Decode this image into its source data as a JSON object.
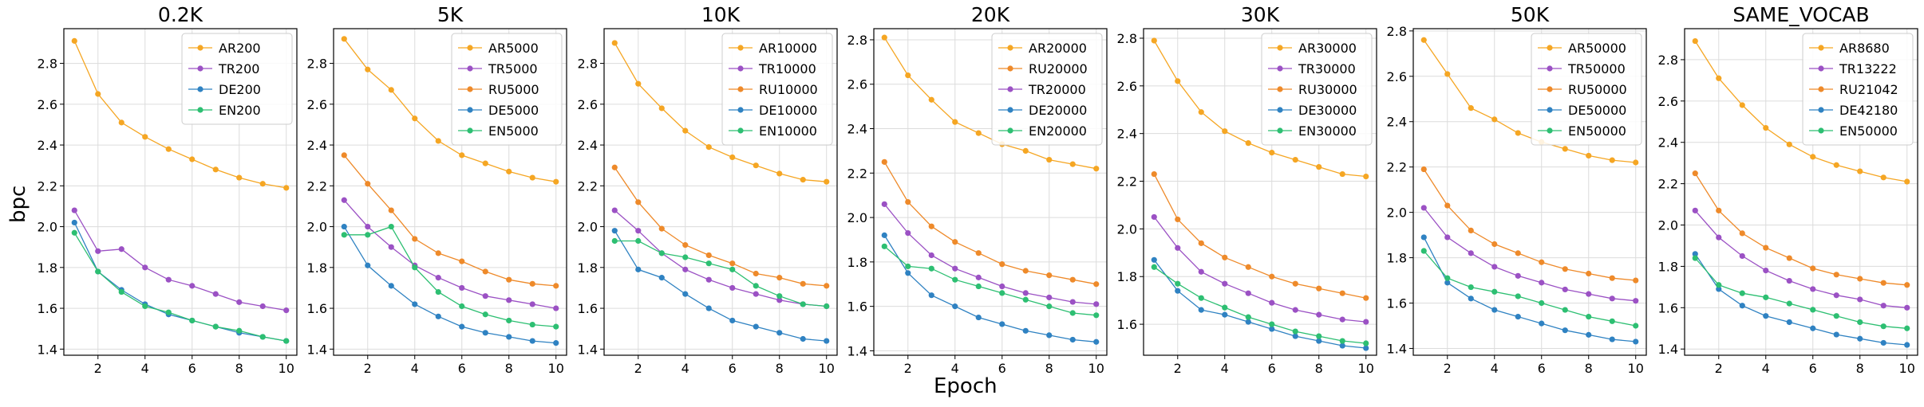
{
  "figure": {
    "ylabel": "bpc",
    "xlabel": "Epoch"
  },
  "colors": {
    "AR": "#f5a623",
    "TR": "#9b51c4",
    "RU": "#ee8a2a",
    "DE": "#2f82c2",
    "EN": "#2dbf72"
  },
  "chart_data": [
    {
      "type": "line",
      "title": "0.2K",
      "x": [
        1,
        2,
        3,
        4,
        5,
        6,
        7,
        8,
        9,
        10
      ],
      "xticks": [
        2,
        4,
        6,
        8,
        10
      ],
      "ylim": [
        1.37,
        2.97
      ],
      "yticks": [
        1.4,
        1.6,
        1.8,
        2.0,
        2.2,
        2.4,
        2.6,
        2.8
      ],
      "grid": true,
      "legend": "top-right",
      "series": [
        {
          "name": "AR200",
          "color": "#f5a623",
          "values": [
            2.91,
            2.65,
            2.51,
            2.44,
            2.38,
            2.33,
            2.28,
            2.24,
            2.21,
            2.19
          ]
        },
        {
          "name": "TR200",
          "color": "#9b51c4",
          "values": [
            2.08,
            1.88,
            1.89,
            1.8,
            1.74,
            1.71,
            1.67,
            1.63,
            1.61,
            1.59
          ]
        },
        {
          "name": "DE200",
          "color": "#2f82c2",
          "values": [
            2.02,
            1.78,
            1.69,
            1.62,
            1.57,
            1.54,
            1.51,
            1.48,
            1.46,
            1.44
          ]
        },
        {
          "name": "EN200",
          "color": "#2dbf72",
          "values": [
            1.97,
            1.78,
            1.68,
            1.61,
            1.58,
            1.54,
            1.51,
            1.49,
            1.46,
            1.44
          ]
        }
      ]
    },
    {
      "type": "line",
      "title": "5K",
      "x": [
        1,
        2,
        3,
        4,
        5,
        6,
        7,
        8,
        9,
        10
      ],
      "xticks": [
        2,
        4,
        6,
        8,
        10
      ],
      "ylim": [
        1.37,
        2.97
      ],
      "yticks": [
        1.4,
        1.6,
        1.8,
        2.0,
        2.2,
        2.4,
        2.6,
        2.8
      ],
      "grid": true,
      "legend": "top-right",
      "series": [
        {
          "name": "AR5000",
          "color": "#f5a623",
          "values": [
            2.92,
            2.77,
            2.67,
            2.53,
            2.42,
            2.35,
            2.31,
            2.27,
            2.24,
            2.22
          ]
        },
        {
          "name": "TR5000",
          "color": "#9b51c4",
          "values": [
            2.13,
            2.0,
            1.9,
            1.81,
            1.75,
            1.7,
            1.66,
            1.64,
            1.62,
            1.6
          ]
        },
        {
          "name": "RU5000",
          "color": "#ee8a2a",
          "values": [
            2.35,
            2.21,
            2.08,
            1.94,
            1.87,
            1.83,
            1.78,
            1.74,
            1.72,
            1.71
          ]
        },
        {
          "name": "DE5000",
          "color": "#2f82c2",
          "values": [
            2.0,
            1.81,
            1.71,
            1.62,
            1.56,
            1.51,
            1.48,
            1.46,
            1.44,
            1.43
          ]
        },
        {
          "name": "EN5000",
          "color": "#2dbf72",
          "values": [
            1.96,
            1.96,
            2.0,
            1.8,
            1.68,
            1.61,
            1.57,
            1.54,
            1.52,
            1.51
          ]
        }
      ]
    },
    {
      "type": "line",
      "title": "10K",
      "x": [
        1,
        2,
        3,
        4,
        5,
        6,
        7,
        8,
        9,
        10
      ],
      "xticks": [
        2,
        4,
        6,
        8,
        10
      ],
      "ylim": [
        1.37,
        2.97
      ],
      "yticks": [
        1.4,
        1.6,
        1.8,
        2.0,
        2.2,
        2.4,
        2.6,
        2.8
      ],
      "grid": true,
      "legend": "top-right",
      "series": [
        {
          "name": "AR10000",
          "color": "#f5a623",
          "values": [
            2.9,
            2.7,
            2.58,
            2.47,
            2.39,
            2.34,
            2.3,
            2.26,
            2.23,
            2.22
          ]
        },
        {
          "name": "TR10000",
          "color": "#9b51c4",
          "values": [
            2.08,
            1.98,
            1.87,
            1.79,
            1.74,
            1.7,
            1.67,
            1.64,
            1.62,
            1.61
          ]
        },
        {
          "name": "RU10000",
          "color": "#ee8a2a",
          "values": [
            2.29,
            2.12,
            1.99,
            1.91,
            1.86,
            1.82,
            1.77,
            1.75,
            1.72,
            1.71
          ]
        },
        {
          "name": "DE10000",
          "color": "#2f82c2",
          "values": [
            1.98,
            1.79,
            1.75,
            1.67,
            1.6,
            1.54,
            1.51,
            1.48,
            1.45,
            1.44
          ]
        },
        {
          "name": "EN10000",
          "color": "#2dbf72",
          "values": [
            1.93,
            1.93,
            1.87,
            1.85,
            1.82,
            1.79,
            1.71,
            1.66,
            1.62,
            1.61
          ]
        }
      ]
    },
    {
      "type": "line",
      "title": "20K",
      "x": [
        1,
        2,
        3,
        4,
        5,
        6,
        7,
        8,
        9,
        10
      ],
      "xticks": [
        2,
        4,
        6,
        8,
        10
      ],
      "ylim": [
        1.38,
        2.85
      ],
      "yticks": [
        1.4,
        1.6,
        1.8,
        2.0,
        2.2,
        2.4,
        2.6,
        2.8
      ],
      "grid": true,
      "legend": "top-right",
      "series": [
        {
          "name": "AR20000",
          "color": "#f5a623",
          "values": [
            2.81,
            2.64,
            2.53,
            2.43,
            2.38,
            2.33,
            2.3,
            2.26,
            2.24,
            2.22
          ]
        },
        {
          "name": "RU20000",
          "color": "#ee8a2a",
          "values": [
            2.25,
            2.07,
            1.96,
            1.89,
            1.84,
            1.79,
            1.76,
            1.74,
            1.72,
            1.7
          ]
        },
        {
          "name": "TR20000",
          "color": "#9b51c4",
          "values": [
            2.06,
            1.93,
            1.83,
            1.77,
            1.73,
            1.69,
            1.66,
            1.64,
            1.62,
            1.61
          ]
        },
        {
          "name": "DE20000",
          "color": "#2f82c2",
          "values": [
            1.92,
            1.75,
            1.65,
            1.6,
            1.55,
            1.52,
            1.49,
            1.47,
            1.45,
            1.44
          ]
        },
        {
          "name": "EN20000",
          "color": "#2dbf72",
          "values": [
            1.87,
            1.78,
            1.77,
            1.72,
            1.69,
            1.66,
            1.63,
            1.6,
            1.57,
            1.56
          ]
        }
      ]
    },
    {
      "type": "line",
      "title": "30K",
      "x": [
        1,
        2,
        3,
        4,
        5,
        6,
        7,
        8,
        9,
        10
      ],
      "xticks": [
        2,
        4,
        6,
        8,
        10
      ],
      "ylim": [
        1.47,
        2.84
      ],
      "yticks": [
        1.6,
        1.8,
        2.0,
        2.2,
        2.4,
        2.6,
        2.8
      ],
      "grid": true,
      "legend": "top-right",
      "series": [
        {
          "name": "AR30000",
          "color": "#f5a623",
          "values": [
            2.79,
            2.62,
            2.49,
            2.41,
            2.36,
            2.32,
            2.29,
            2.26,
            2.23,
            2.22
          ]
        },
        {
          "name": "TR30000",
          "color": "#9b51c4",
          "values": [
            2.05,
            1.92,
            1.82,
            1.77,
            1.73,
            1.69,
            1.66,
            1.64,
            1.62,
            1.61
          ]
        },
        {
          "name": "RU30000",
          "color": "#ee8a2a",
          "values": [
            2.23,
            2.04,
            1.94,
            1.88,
            1.84,
            1.8,
            1.77,
            1.75,
            1.73,
            1.71
          ]
        },
        {
          "name": "DE30000",
          "color": "#2f82c2",
          "values": [
            1.87,
            1.74,
            1.66,
            1.64,
            1.61,
            1.58,
            1.55,
            1.53,
            1.51,
            1.5
          ]
        },
        {
          "name": "EN30000",
          "color": "#2dbf72",
          "values": [
            1.84,
            1.77,
            1.71,
            1.67,
            1.63,
            1.6,
            1.57,
            1.55,
            1.53,
            1.52
          ]
        }
      ]
    },
    {
      "type": "line",
      "title": "50K",
      "x": [
        1,
        2,
        3,
        4,
        5,
        6,
        7,
        8,
        9,
        10
      ],
      "xticks": [
        2,
        4,
        6,
        8,
        10
      ],
      "ylim": [
        1.37,
        2.81
      ],
      "yticks": [
        1.4,
        1.6,
        1.8,
        2.0,
        2.2,
        2.4,
        2.6,
        2.8
      ],
      "grid": true,
      "legend": "top-right",
      "series": [
        {
          "name": "AR50000",
          "color": "#f5a623",
          "values": [
            2.76,
            2.61,
            2.46,
            2.41,
            2.35,
            2.31,
            2.28,
            2.25,
            2.23,
            2.22
          ]
        },
        {
          "name": "TR50000",
          "color": "#9b51c4",
          "values": [
            2.02,
            1.89,
            1.82,
            1.76,
            1.72,
            1.69,
            1.66,
            1.64,
            1.62,
            1.61
          ]
        },
        {
          "name": "RU50000",
          "color": "#ee8a2a",
          "values": [
            2.19,
            2.03,
            1.92,
            1.86,
            1.82,
            1.78,
            1.75,
            1.73,
            1.71,
            1.7
          ]
        },
        {
          "name": "DE50000",
          "color": "#2f82c2",
          "values": [
            1.89,
            1.69,
            1.62,
            1.57,
            1.54,
            1.51,
            1.48,
            1.46,
            1.44,
            1.43
          ]
        },
        {
          "name": "EN50000",
          "color": "#2dbf72",
          "values": [
            1.83,
            1.71,
            1.67,
            1.65,
            1.63,
            1.6,
            1.57,
            1.54,
            1.52,
            1.5
          ]
        }
      ]
    },
    {
      "type": "line",
      "title": "SAME_VOCAB",
      "x": [
        1,
        2,
        3,
        4,
        5,
        6,
        7,
        8,
        9,
        10
      ],
      "xticks": [
        2,
        4,
        6,
        8,
        10
      ],
      "ylim": [
        1.37,
        2.95
      ],
      "yticks": [
        1.4,
        1.6,
        1.8,
        2.0,
        2.2,
        2.4,
        2.6,
        2.8
      ],
      "grid": true,
      "legend": "top-right",
      "series": [
        {
          "name": "AR8680",
          "color": "#f5a623",
          "values": [
            2.89,
            2.71,
            2.58,
            2.47,
            2.39,
            2.33,
            2.29,
            2.26,
            2.23,
            2.21
          ]
        },
        {
          "name": "TR13222",
          "color": "#9b51c4",
          "values": [
            2.07,
            1.94,
            1.85,
            1.78,
            1.73,
            1.69,
            1.66,
            1.64,
            1.61,
            1.6
          ]
        },
        {
          "name": "RU21042",
          "color": "#ee8a2a",
          "values": [
            2.25,
            2.07,
            1.96,
            1.89,
            1.84,
            1.79,
            1.76,
            1.74,
            1.72,
            1.71
          ]
        },
        {
          "name": "DE42180",
          "color": "#2f82c2",
          "values": [
            1.86,
            1.69,
            1.61,
            1.56,
            1.53,
            1.5,
            1.47,
            1.45,
            1.43,
            1.42
          ]
        },
        {
          "name": "EN50000",
          "color": "#2dbf72",
          "values": [
            1.84,
            1.71,
            1.67,
            1.65,
            1.62,
            1.59,
            1.56,
            1.53,
            1.51,
            1.5
          ]
        }
      ]
    }
  ]
}
